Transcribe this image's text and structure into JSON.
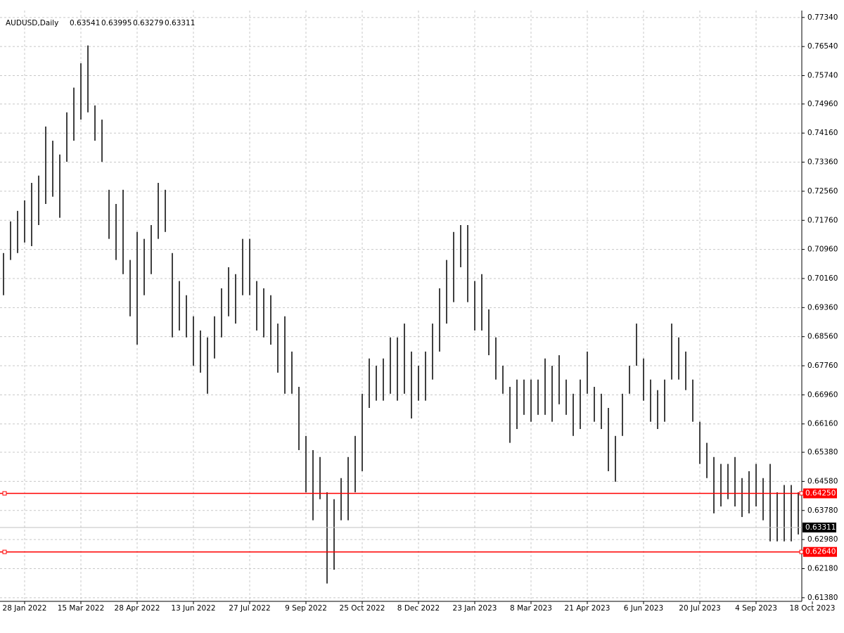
{
  "chart_data": {
    "type": "ohlc",
    "title": "AUDUSD,Daily",
    "quote": {
      "open": 0.63541,
      "high": 0.63995,
      "low": 0.63279,
      "close": 0.63311
    },
    "color": "#000000",
    "grid": true,
    "ylim": [
      0.6128,
      0.7753
    ],
    "yticks": [
      {
        "value": 0.7734,
        "label": "0.77340"
      },
      {
        "value": 0.7654,
        "label": "0.76540"
      },
      {
        "value": 0.7574,
        "label": "0.75740"
      },
      {
        "value": 0.7496,
        "label": "0.74960"
      },
      {
        "value": 0.7416,
        "label": "0.74160"
      },
      {
        "value": 0.7336,
        "label": "0.73360"
      },
      {
        "value": 0.7256,
        "label": "0.72560"
      },
      {
        "value": 0.7176,
        "label": "0.71760"
      },
      {
        "value": 0.7096,
        "label": "0.70960"
      },
      {
        "value": 0.7016,
        "label": "0.70160"
      },
      {
        "value": 0.6936,
        "label": "0.69360"
      },
      {
        "value": 0.6856,
        "label": "0.68560"
      },
      {
        "value": 0.6776,
        "label": "0.67760"
      },
      {
        "value": 0.6696,
        "label": "0.66960"
      },
      {
        "value": 0.6616,
        "label": "0.66160"
      },
      {
        "value": 0.6538,
        "label": "0.65380"
      },
      {
        "value": 0.6458,
        "label": "0.64580"
      },
      {
        "value": 0.6378,
        "label": "0.63780"
      },
      {
        "value": 0.6298,
        "label": "0.62980"
      },
      {
        "value": 0.6218,
        "label": "0.62180"
      },
      {
        "value": 0.6138,
        "label": "0.61380"
      }
    ],
    "xlim": [
      -0.5,
      113.5
    ],
    "xticks": [
      {
        "value": 3,
        "label": "28 Jan 2022"
      },
      {
        "value": 11,
        "label": "15 Mar 2022"
      },
      {
        "value": 19,
        "label": "28 Apr 2022"
      },
      {
        "value": 27,
        "label": "13 Jun 2022"
      },
      {
        "value": 35,
        "label": "27 Jul 2022"
      },
      {
        "value": 43,
        "label": "9 Sep 2022"
      },
      {
        "value": 51,
        "label": "25 Oct 2022"
      },
      {
        "value": 59,
        "label": "8 Dec 2022"
      },
      {
        "value": 67,
        "label": "23 Jan 2023"
      },
      {
        "value": 75,
        "label": "8 Mar 2023"
      },
      {
        "value": 83,
        "label": "21 Apr 2023"
      },
      {
        "value": 91,
        "label": "6 Jun 2023"
      },
      {
        "value": 99,
        "label": "20 Jul 2023"
      },
      {
        "value": 107,
        "label": "4 Sep 2023"
      },
      {
        "value": 115,
        "label": "18 Oct 2023"
      }
    ],
    "levels": [
      {
        "value": 0.6425,
        "label": "0.64250",
        "color": "#ff0000"
      },
      {
        "value": 0.6264,
        "label": "0.62640",
        "color": "#ff0000"
      }
    ],
    "high": [
      0.7086,
      0.7173,
      0.7202,
      0.7231,
      0.7279,
      0.7299,
      0.7434,
      0.7395,
      0.7357,
      0.7473,
      0.7541,
      0.7608,
      0.7657,
      0.7492,
      0.7453,
      0.726,
      0.7221,
      0.726,
      0.7067,
      0.7144,
      0.7125,
      0.7163,
      0.7279,
      0.726,
      0.7086,
      0.7009,
      0.697,
      0.6912,
      0.6873,
      0.6854,
      0.6912,
      0.6989,
      0.7047,
      0.7028,
      0.7125,
      0.7125,
      0.7009,
      0.6989,
      0.697,
      0.6892,
      0.6912,
      0.6815,
      0.6718,
      0.6583,
      0.6544,
      0.6525,
      0.6428,
      0.6409,
      0.6467,
      0.6525,
      0.6583,
      0.6699,
      0.6796,
      0.6776,
      0.6796,
      0.6854,
      0.6854,
      0.6892,
      0.6815,
      0.6776,
      0.6815,
      0.6892,
      0.6989,
      0.7067,
      0.7144,
      0.7163,
      0.7163,
      0.7009,
      0.7028,
      0.6931,
      0.6854,
      0.6776,
      0.6718,
      0.6738,
      0.6738,
      0.6738,
      0.6738,
      0.6796,
      0.6776,
      0.6805,
      0.6738,
      0.6699,
      0.6738,
      0.6815,
      0.6718,
      0.6699,
      0.666,
      0.6583,
      0.6699,
      0.6776,
      0.6892,
      0.6796,
      0.6738,
      0.6709,
      0.6738,
      0.6892,
      0.6854,
      0.6815,
      0.6738,
      0.6622,
      0.6564,
      0.6525,
      0.6506,
      0.6506,
      0.6525,
      0.6467,
      0.6486,
      0.6506,
      0.6467,
      0.6506,
      0.6428,
      0.6448,
      0.6448,
      0.6428
    ],
    "low": [
      0.697,
      0.7067,
      0.7086,
      0.7115,
      0.7105,
      0.7163,
      0.7221,
      0.7241,
      0.7183,
      0.7337,
      0.7395,
      0.7453,
      0.7473,
      0.7395,
      0.7337,
      0.7125,
      0.7067,
      0.7028,
      0.6912,
      0.6834,
      0.697,
      0.7028,
      0.7125,
      0.7144,
      0.6854,
      0.6873,
      0.6854,
      0.6776,
      0.6757,
      0.6699,
      0.6796,
      0.6854,
      0.6912,
      0.6892,
      0.697,
      0.697,
      0.6873,
      0.6854,
      0.6834,
      0.6757,
      0.6699,
      0.6699,
      0.6544,
      0.6428,
      0.6351,
      0.6409,
      0.6177,
      0.6215,
      0.6351,
      0.6351,
      0.6428,
      0.6486,
      0.666,
      0.668,
      0.668,
      0.6699,
      0.668,
      0.6699,
      0.6631,
      0.668,
      0.668,
      0.6738,
      0.6815,
      0.6892,
      0.6951,
      0.7047,
      0.6951,
      0.6873,
      0.6873,
      0.6805,
      0.6738,
      0.6699,
      0.6564,
      0.6602,
      0.6641,
      0.6622,
      0.6641,
      0.6641,
      0.6622,
      0.667,
      0.6641,
      0.6583,
      0.6602,
      0.6699,
      0.6622,
      0.6602,
      0.6486,
      0.6457,
      0.6583,
      0.6699,
      0.6776,
      0.668,
      0.6622,
      0.6602,
      0.6622,
      0.6738,
      0.6738,
      0.6709,
      0.6622,
      0.6506,
      0.6467,
      0.637,
      0.6389,
      0.6409,
      0.6389,
      0.636,
      0.637,
      0.6389,
      0.6351,
      0.6293,
      0.6293,
      0.6293,
      0.6293,
      0.6312
    ]
  }
}
